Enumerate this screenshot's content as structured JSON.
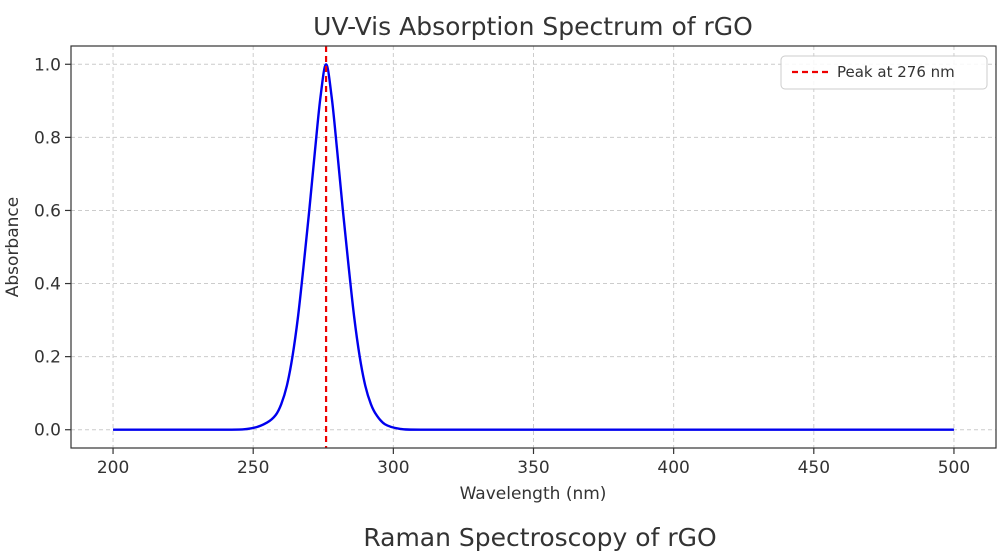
{
  "chart_data": [
    {
      "type": "line",
      "title": "UV-Vis Absorption Spectrum of rGO",
      "xlabel": "Wavelength (nm)",
      "ylabel": "Absorbance",
      "xlim": [
        185,
        515
      ],
      "ylim": [
        -0.05,
        1.05
      ],
      "xticks": [
        200,
        250,
        300,
        350,
        400,
        450,
        500
      ],
      "yticks": [
        0.0,
        0.2,
        0.4,
        0.6,
        0.8,
        1.0
      ],
      "grid": true,
      "legend": {
        "placement": "top-right",
        "entries": [
          "Peak at 276 nm"
        ]
      },
      "series": [
        {
          "color": "#0000ee",
          "x": [
            200,
            240,
            250,
            255,
            258,
            260,
            262,
            264,
            266,
            268,
            270,
            272,
            274,
            276,
            278,
            280,
            282,
            284,
            286,
            288,
            290,
            292,
            294,
            297,
            302,
            310,
            350,
            400,
            450,
            500
          ],
          "y": [
            0.0,
            0.0,
            0.005,
            0.02,
            0.04,
            0.07,
            0.12,
            0.2,
            0.31,
            0.45,
            0.6,
            0.76,
            0.91,
            1.0,
            0.91,
            0.76,
            0.6,
            0.45,
            0.31,
            0.2,
            0.12,
            0.07,
            0.04,
            0.015,
            0.003,
            0.0,
            0.0,
            0.0,
            0.0,
            0.0
          ]
        }
      ],
      "annotations": [
        {
          "type": "vline",
          "x": 276,
          "color": "#ee0000",
          "style": "dashed",
          "label": "Peak at 276 nm"
        }
      ]
    },
    {
      "type": "line",
      "title": "Raman Spectroscopy of rGO"
    }
  ]
}
